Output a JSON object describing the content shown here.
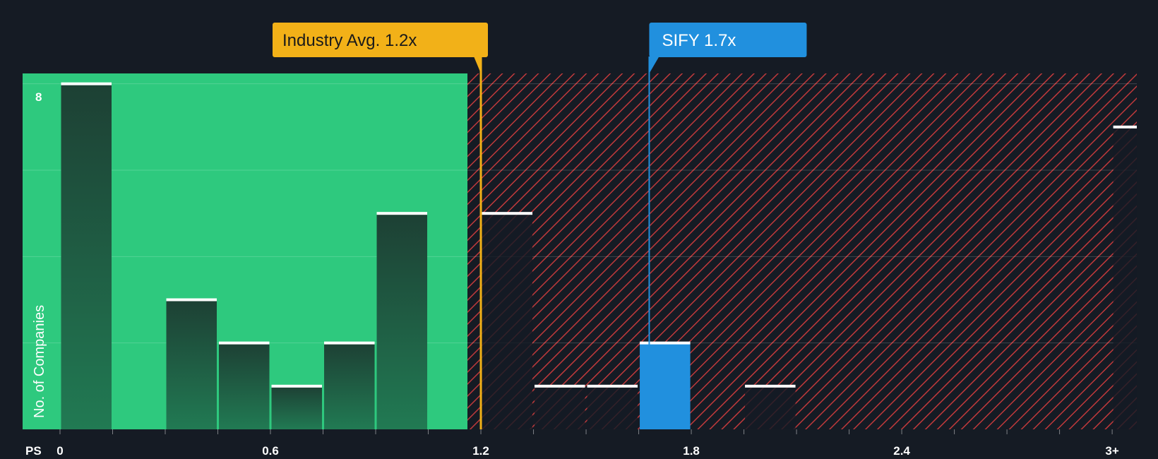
{
  "chart_data": {
    "type": "bar",
    "title": "",
    "xlabel": "PS",
    "ylabel": "No. of Companies",
    "xlim": [
      0,
      3.2
    ],
    "ylim": [
      0,
      8.24
    ],
    "y_tick_labels": [
      "8"
    ],
    "x_tick_labels": [
      {
        "value": 0,
        "label": "0"
      },
      {
        "value": 0.6,
        "label": "0.6"
      },
      {
        "value": 1.2,
        "label": "1.2"
      },
      {
        "value": 1.8,
        "label": "1.8"
      },
      {
        "value": 2.4,
        "label": "2.4"
      },
      {
        "value": 3.0,
        "label": "3+"
      }
    ],
    "bin_width": 0.15,
    "bars": [
      {
        "x0": 0.0,
        "value": 8
      },
      {
        "x0": 0.3,
        "value": 3
      },
      {
        "x0": 0.45,
        "value": 2
      },
      {
        "x0": 0.6,
        "value": 1
      },
      {
        "x0": 0.75,
        "value": 2
      },
      {
        "x0": 0.9,
        "value": 5
      },
      {
        "x0": 1.2,
        "value": 5
      },
      {
        "x0": 1.35,
        "value": 1
      },
      {
        "x0": 1.5,
        "value": 1
      },
      {
        "x0": 1.65,
        "value": 2,
        "highlight": true
      },
      {
        "x0": 1.95,
        "value": 1
      },
      {
        "x0": 3.0,
        "value": 7
      }
    ],
    "fair_zone_end": 1.17,
    "markers": [
      {
        "name": "industry-avg",
        "label": "Industry Avg. 1.2x",
        "value": 1.2
      },
      {
        "name": "company",
        "label": "SIFY 1.7x",
        "value": 1.68
      }
    ]
  },
  "colors": {
    "background": "#151b24",
    "fair_zone": "#2ec97e",
    "bar": "#1f4a3d",
    "highlight_bar": "#2190de",
    "hatch": "#c0393b",
    "industry_marker": "#f2b118",
    "company_marker": "#2190de"
  }
}
